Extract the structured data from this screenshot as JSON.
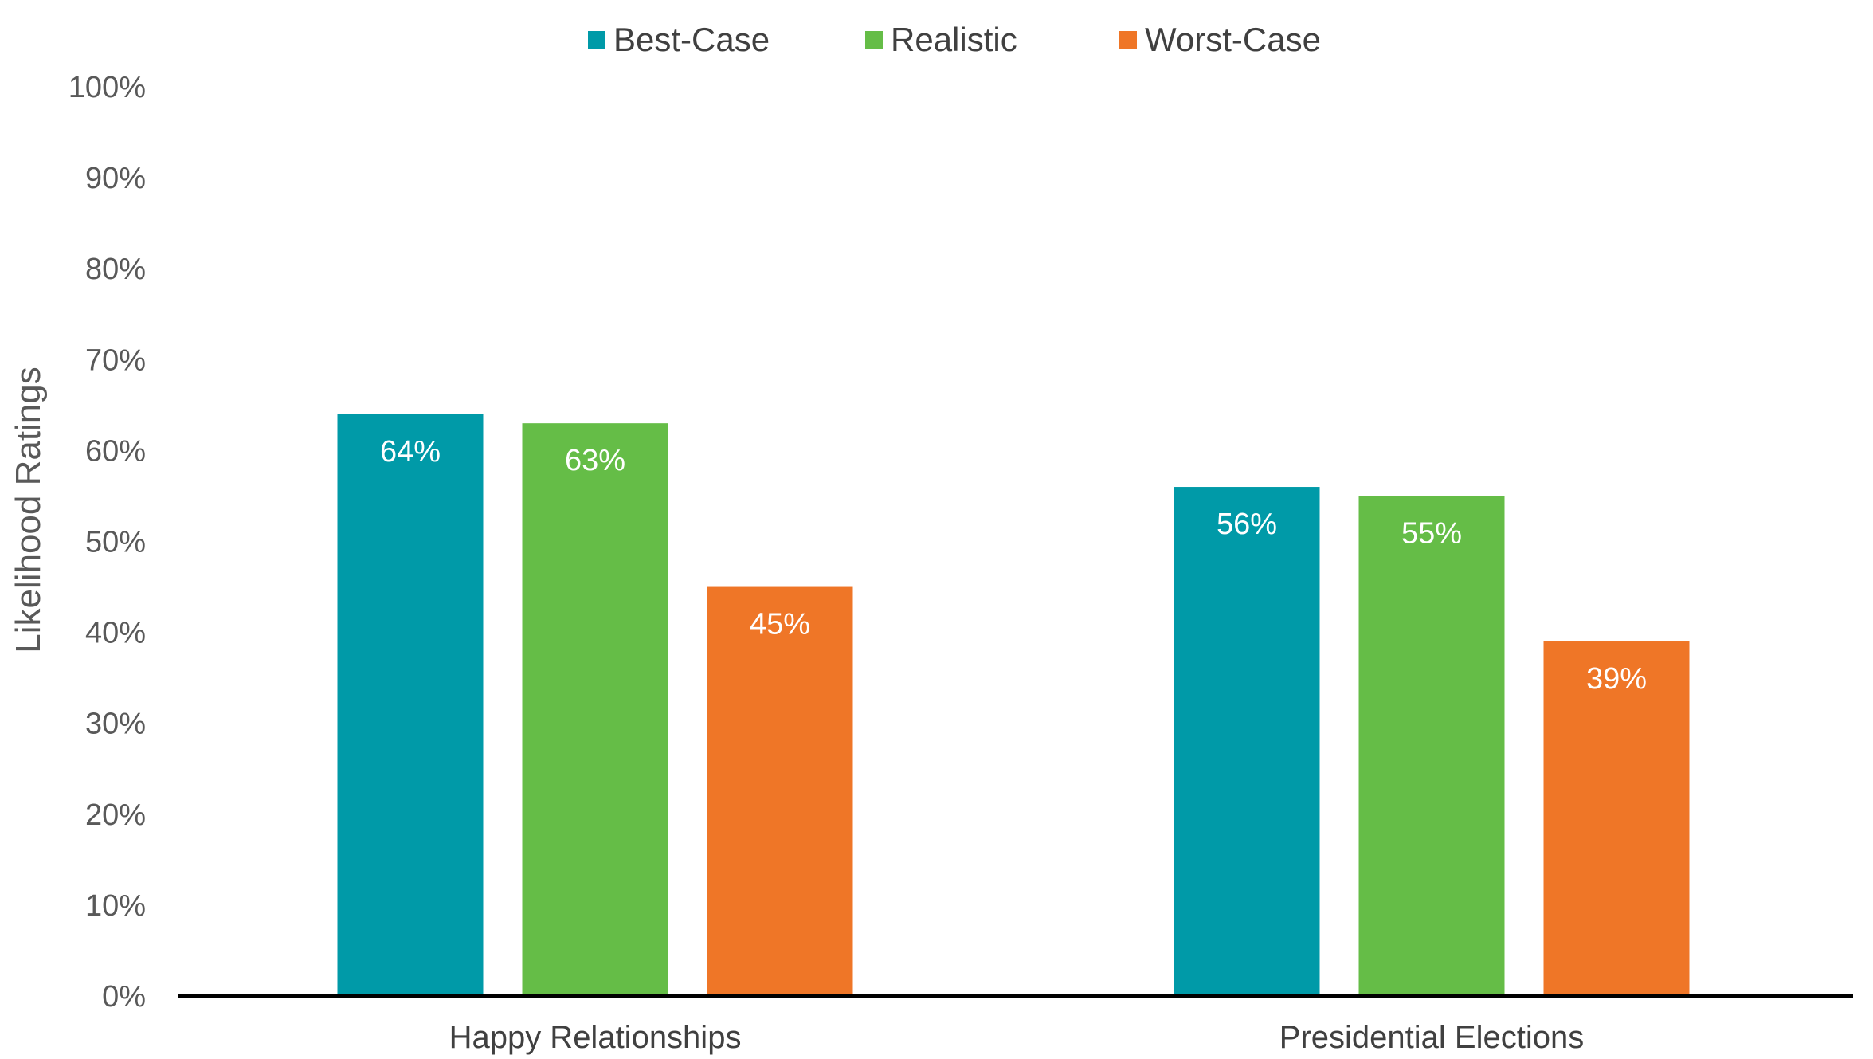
{
  "chart_data": {
    "type": "bar",
    "title": "",
    "xlabel": "",
    "ylabel": "Likelihood Ratings",
    "categories": [
      "Happy Relationships",
      "Presidential Elections"
    ],
    "series": [
      {
        "name": "Best-Case",
        "color": "#009aa8",
        "values": [
          64,
          56
        ],
        "labels": [
          "64%",
          "56%"
        ]
      },
      {
        "name": "Realistic",
        "color": "#65bd47",
        "values": [
          63,
          55
        ],
        "labels": [
          "63%",
          "55%"
        ]
      },
      {
        "name": "Worst-Case",
        "color": "#ef7627",
        "values": [
          45,
          39
        ],
        "labels": [
          "45%",
          "39%"
        ]
      }
    ],
    "ylim": [
      0,
      100
    ],
    "yticks": [
      0,
      10,
      20,
      30,
      40,
      50,
      60,
      70,
      80,
      90,
      100
    ],
    "ytick_labels": [
      "0%",
      "10%",
      "20%",
      "30%",
      "40%",
      "50%",
      "60%",
      "70%",
      "80%",
      "90%",
      "100%"
    ],
    "grid": false,
    "legend_position": "top-center",
    "axis_color": "#000000"
  }
}
